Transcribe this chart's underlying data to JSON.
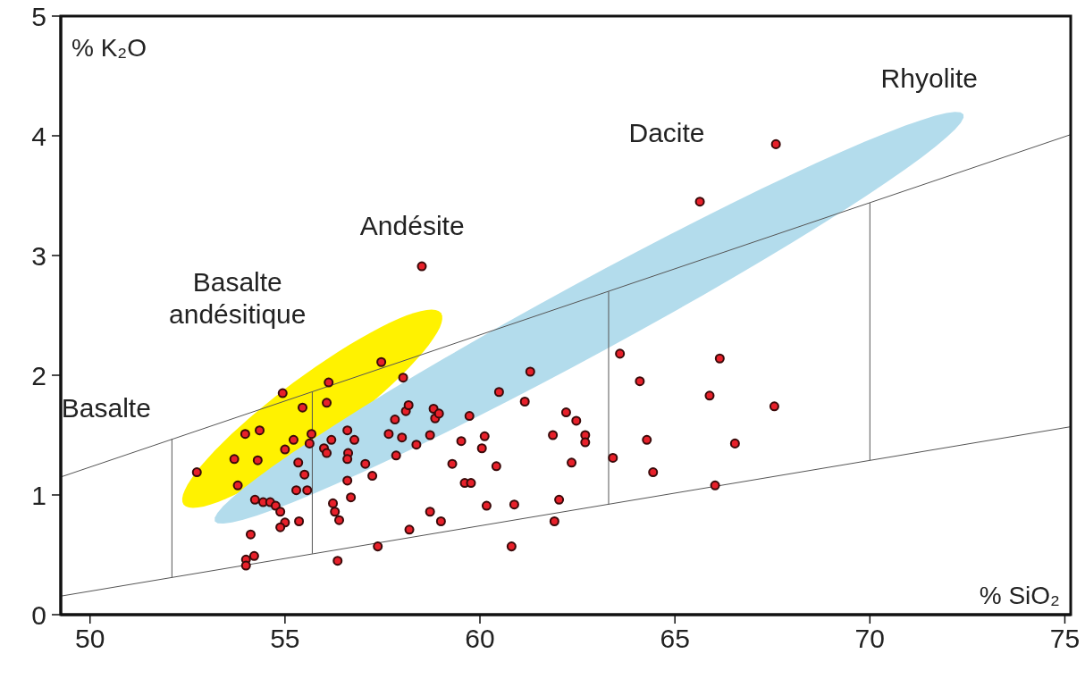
{
  "chart_data": {
    "type": "scatter",
    "xlabel": "% SiO₂",
    "ylabel": "% K₂O",
    "xlim": [
      49.25,
      75.15
    ],
    "ylim": [
      0,
      5
    ],
    "xticks": [
      50,
      55,
      60,
      65,
      70,
      75
    ],
    "yticks": [
      0,
      1,
      2,
      3,
      4,
      5
    ],
    "grid": false,
    "series": [
      {
        "color": "#e8202a",
        "marker": "circle",
        "x": [
          52.74,
          53.7,
          53.79,
          53.98,
          54.35,
          54.3,
          55.22,
          55.0,
          54.94,
          55.45,
          56.12,
          56.07,
          57.47,
          58.03,
          58.51,
          55.68,
          55.63,
          55.34,
          55.29,
          55.57,
          55.5,
          56.0,
          56.19,
          56.07,
          56.6,
          56.62,
          56.78,
          56.6,
          56.6,
          56.69,
          57.06,
          57.24,
          54.23,
          54.44,
          54.62,
          54.76,
          54.88,
          55.0,
          54.88,
          55.36,
          54.12,
          54.0,
          54.0,
          54.21,
          56.23,
          56.28,
          56.39,
          56.35,
          57.38,
          57.66,
          57.82,
          57.85,
          58.1,
          58.17,
          58.0,
          58.37,
          58.72,
          58.81,
          58.85,
          58.95,
          58.72,
          59.0,
          58.19,
          59.29,
          59.52,
          59.73,
          59.61,
          59.77,
          60.05,
          60.12,
          60.17,
          60.49,
          60.42,
          60.88,
          60.81,
          61.15,
          61.29,
          61.87,
          61.91,
          62.03,
          62.21,
          62.47,
          62.35,
          62.7,
          62.7,
          63.41,
          63.59,
          64.1,
          64.28,
          64.44,
          65.89,
          66.15,
          66.03,
          66.54,
          67.55,
          65.64,
          67.59
        ],
        "values": [
          1.19,
          1.3,
          1.08,
          1.51,
          1.54,
          1.29,
          1.46,
          1.38,
          1.85,
          1.73,
          1.94,
          1.77,
          2.11,
          1.98,
          2.91,
          1.51,
          1.43,
          1.27,
          1.04,
          1.04,
          1.17,
          1.39,
          1.46,
          1.35,
          1.54,
          1.35,
          1.46,
          1.3,
          1.12,
          0.98,
          1.26,
          1.16,
          0.96,
          0.94,
          0.94,
          0.91,
          0.86,
          0.77,
          0.73,
          0.78,
          0.67,
          0.46,
          0.41,
          0.49,
          0.93,
          0.86,
          0.79,
          0.45,
          0.57,
          1.51,
          1.63,
          1.33,
          1.7,
          1.75,
          1.48,
          1.42,
          1.5,
          1.72,
          1.64,
          1.68,
          0.86,
          0.78,
          0.71,
          1.26,
          1.45,
          1.66,
          1.1,
          1.1,
          1.39,
          1.49,
          0.91,
          1.86,
          1.24,
          0.92,
          0.57,
          1.78,
          2.03,
          1.5,
          0.78,
          0.96,
          1.69,
          1.62,
          1.27,
          1.5,
          1.44,
          1.31,
          2.18,
          1.95,
          1.46,
          1.19,
          1.83,
          2.14,
          1.08,
          1.43,
          1.74,
          3.45,
          3.93
        ]
      },
      {
        "type": "line",
        "color": "#555555",
        "marker": "none",
        "x": [
          49.25,
          75.15
        ],
        "values": [
          1.15,
          4.01
        ]
      },
      {
        "type": "line",
        "color": "#555555",
        "marker": "none",
        "x": [
          49.25,
          75.15
        ],
        "values": [
          0.155,
          1.57
        ]
      },
      {
        "type": "line",
        "color": "#555555",
        "marker": "none",
        "x": [
          52.1,
          52.1
        ],
        "values": [
          0.31,
          1.47
        ]
      },
      {
        "type": "line",
        "color": "#555555",
        "marker": "none",
        "x": [
          55.7,
          55.7
        ],
        "values": [
          0.51,
          1.86
        ]
      },
      {
        "type": "line",
        "color": "#555555",
        "marker": "none",
        "x": [
          63.3,
          63.3
        ],
        "values": [
          0.92,
          2.7
        ]
      },
      {
        "type": "line",
        "color": "#555555",
        "marker": "none",
        "x": [
          70,
          70
        ],
        "values": [
          1.29,
          3.44
        ]
      }
    ],
    "annotations": [
      "Basalte",
      "Basalte\nandésitique",
      "Andésite",
      "Dacite",
      "Rhyolite"
    ]
  }
}
